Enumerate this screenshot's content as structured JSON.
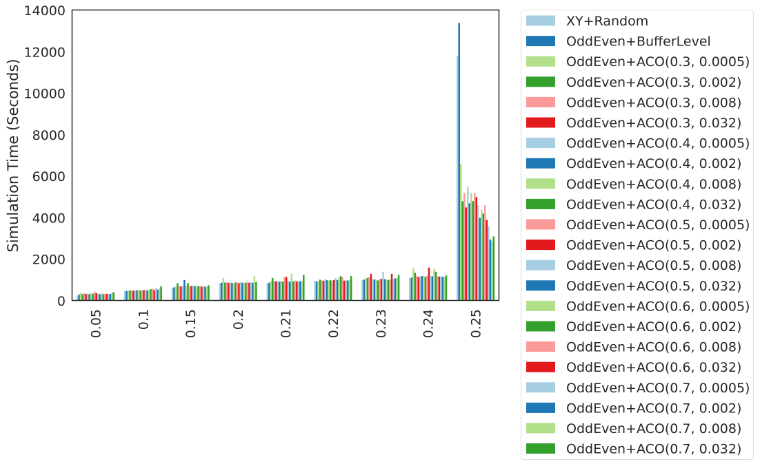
{
  "chart_data": {
    "type": "bar",
    "title": "",
    "xlabel": "",
    "ylabel": "Simulation Time (Seconds)",
    "ylim": [
      0,
      14000
    ],
    "yticks": [
      "0",
      "2000",
      "4000",
      "6000",
      "8000",
      "10000",
      "12000",
      "14000"
    ],
    "categories": [
      "0.05",
      "0.1",
      "0.15",
      "0.2",
      "0.21",
      "0.22",
      "0.23",
      "0.24",
      "0.25"
    ],
    "grid": false,
    "legend_position": "outside-right",
    "palette": [
      "#a6cee3",
      "#1f78b4",
      "#b2df8a",
      "#33a02c",
      "#fb9a99",
      "#e31a1c"
    ],
    "series": [
      {
        "name": "XY+Random",
        "values": [
          250,
          460,
          620,
          850,
          850,
          950,
          1000,
          1100,
          11800
        ]
      },
      {
        "name": "OddEven+BufferLevel",
        "values": [
          300,
          480,
          650,
          870,
          870,
          930,
          1020,
          1120,
          13400
        ]
      },
      {
        "name": "OddEven+ACO(0.3, 0.0005)",
        "values": [
          380,
          470,
          680,
          1100,
          950,
          950,
          1100,
          1600,
          6600
        ]
      },
      {
        "name": "OddEven+ACO(0.3, 0.002)",
        "values": [
          320,
          500,
          850,
          880,
          1100,
          1020,
          1100,
          1350,
          4800
        ]
      },
      {
        "name": "OddEven+ACO(0.3, 0.008)",
        "values": [
          360,
          500,
          700,
          880,
          950,
          980,
          1150,
          1200,
          5200
        ]
      },
      {
        "name": "OddEven+ACO(0.3, 0.032)",
        "values": [
          330,
          490,
          690,
          870,
          940,
          970,
          1300,
          1150,
          4500
        ]
      },
      {
        "name": "OddEven+ACO(0.4, 0.0005)",
        "values": [
          350,
          500,
          710,
          890,
          930,
          1050,
          1050,
          1180,
          5500
        ]
      },
      {
        "name": "OddEven+ACO(0.4, 0.002)",
        "values": [
          320,
          510,
          1000,
          860,
          920,
          990,
          1030,
          1190,
          4700
        ]
      },
      {
        "name": "OddEven+ACO(0.4, 0.008)",
        "values": [
          380,
          520,
          730,
          850,
          960,
          970,
          1010,
          1200,
          5200
        ]
      },
      {
        "name": "OddEven+ACO(0.4, 0.032)",
        "values": [
          340,
          500,
          850,
          880,
          930,
          1000,
          980,
          1150,
          4800
        ]
      },
      {
        "name": "OddEven+ACO(0.5, 0.0005)",
        "values": [
          440,
          490,
          700,
          900,
          1150,
          960,
          1040,
          1210,
          5200
        ]
      },
      {
        "name": "OddEven+ACO(0.5, 0.002)",
        "values": [
          370,
          520,
          710,
          850,
          1150,
          1000,
          1060,
          1600,
          5000
        ]
      },
      {
        "name": "OddEven+ACO(0.5, 0.008)",
        "values": [
          350,
          540,
          740,
          900,
          960,
          1100,
          1400,
          1200,
          4600
        ]
      },
      {
        "name": "OddEven+ACO(0.5, 0.032)",
        "values": [
          320,
          500,
          700,
          870,
          920,
          1000,
          1050,
          1180,
          4000
        ]
      },
      {
        "name": "OddEven+ACO(0.6, 0.0005)",
        "values": [
          380,
          530,
          720,
          880,
          1300,
          1150,
          1000,
          1550,
          4400
        ]
      },
      {
        "name": "OddEven+ACO(0.6, 0.002)",
        "values": [
          320,
          560,
          700,
          870,
          940,
          1180,
          1010,
          1400,
          4200
        ]
      },
      {
        "name": "OddEven+ACO(0.6, 0.008)",
        "values": [
          330,
          580,
          720,
          900,
          970,
          1150,
          1020,
          1180,
          4600
        ]
      },
      {
        "name": "OddEven+ACO(0.6, 0.032)",
        "values": [
          340,
          520,
          680,
          870,
          930,
          970,
          1300,
          1170,
          3900
        ]
      },
      {
        "name": "OddEven+ACO(0.7, 0.0005)",
        "values": [
          320,
          630,
          700,
          900,
          950,
          990,
          1050,
          1180,
          3600
        ]
      },
      {
        "name": "OddEven+ACO(0.7, 0.002)",
        "values": [
          330,
          540,
          680,
          870,
          940,
          980,
          1080,
          1160,
          2950
        ]
      },
      {
        "name": "OddEven+ACO(0.7, 0.008)",
        "values": [
          370,
          600,
          690,
          1180,
          950,
          1000,
          1100,
          1150,
          2900
        ]
      },
      {
        "name": "OddEven+ACO(0.7, 0.032)",
        "values": [
          420,
          700,
          750,
          900,
          1250,
          1200,
          1250,
          1220,
          3100
        ]
      }
    ]
  }
}
